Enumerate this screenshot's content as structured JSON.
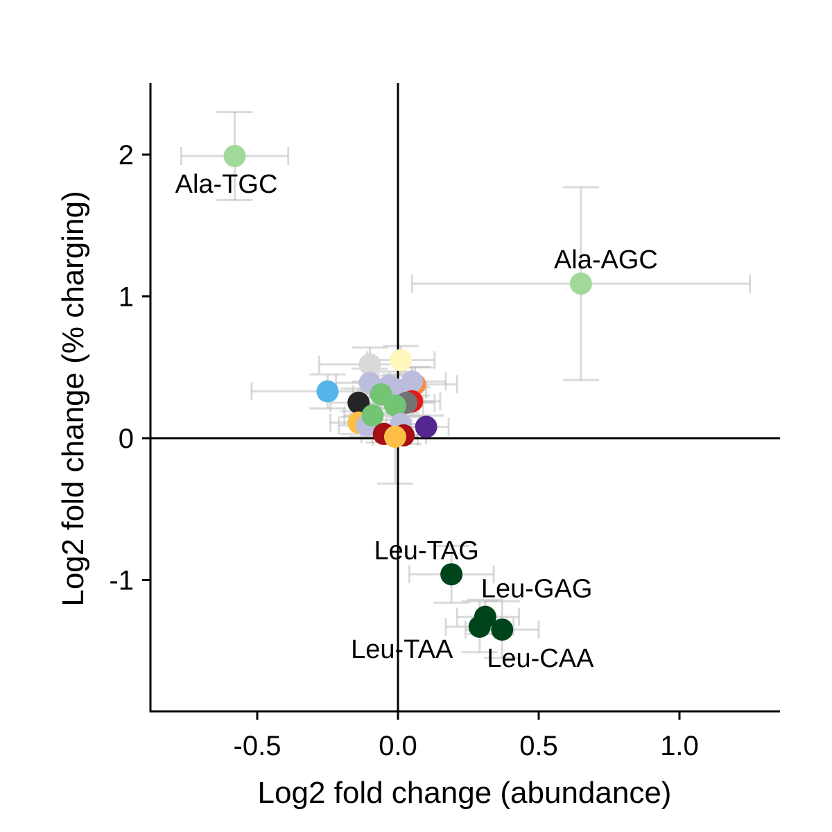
{
  "chart_data": {
    "type": "scatter",
    "xlabel": "Log2 fold change (abundance)",
    "ylabel": "Log2 fold change (% charging)",
    "xlim": [
      -0.88,
      1.35
    ],
    "ylim": [
      -1.93,
      2.5
    ],
    "xticks": [
      -0.5,
      0.0,
      0.5,
      1.0
    ],
    "xtick_labels": [
      "-0.5",
      "0.0",
      "0.5",
      "1.0"
    ],
    "yticks": [
      -1,
      0,
      1,
      2
    ],
    "ytick_labels": [
      "-1",
      "0",
      "1",
      "2"
    ],
    "reference_lines": {
      "x": 0,
      "y": 0
    },
    "grid": false,
    "legend": "none",
    "error_bar_color": "#bbbbbb",
    "points": [
      {
        "x": -0.58,
        "y": 1.99,
        "xerr": [
          0.19,
          0.19
        ],
        "yerr": [
          0.31,
          0.31
        ],
        "color": "#a1d99b",
        "label": "Ala-TGC"
      },
      {
        "x": 0.65,
        "y": 1.09,
        "xerr": [
          0.6,
          0.6
        ],
        "yerr": [
          0.68,
          0.68
        ],
        "color": "#a1d99b",
        "label": "Ala-AGC"
      },
      {
        "x": 0.19,
        "y": -0.96,
        "xerr": [
          0.15,
          0.15
        ],
        "yerr": [
          0.2,
          0.2
        ],
        "color": "#00441b",
        "label": "Leu-TAG"
      },
      {
        "x": 0.31,
        "y": -1.26,
        "xerr": [
          0.1,
          0.12
        ],
        "yerr": [
          0.12,
          0.12
        ],
        "color": "#00441b",
        "label": "Leu-GAG"
      },
      {
        "x": 0.29,
        "y": -1.33,
        "xerr": [
          0.12,
          0.12
        ],
        "yerr": [
          0.18,
          0.18
        ],
        "color": "#00441b",
        "label": "Leu-TAA"
      },
      {
        "x": 0.37,
        "y": -1.35,
        "xerr": [
          0.13,
          0.13
        ],
        "yerr": [
          0.2,
          0.2
        ],
        "color": "#00441b",
        "label": "Leu-CAA"
      },
      {
        "x": -0.25,
        "y": 0.33,
        "xerr": [
          0.27,
          0.22
        ],
        "yerr": [
          0.12,
          0.12
        ],
        "color": "#56b4e9",
        "label": ""
      },
      {
        "x": -0.1,
        "y": 0.52,
        "xerr": [
          0.18,
          0.12
        ],
        "yerr": [
          0.12,
          0.12
        ],
        "color": "#d9d9d9",
        "label": ""
      },
      {
        "x": 0.01,
        "y": 0.55,
        "xerr": [
          0.12,
          0.12
        ],
        "yerr": [
          0.1,
          0.1
        ],
        "color": "#fff7bc",
        "label": ""
      },
      {
        "x": 0.06,
        "y": 0.38,
        "xerr": [
          0.15,
          0.15
        ],
        "yerr": [
          0.12,
          0.12
        ],
        "color": "#fd8d3c",
        "label": ""
      },
      {
        "x": 0.05,
        "y": 0.4,
        "xerr": [
          0.12,
          0.12
        ],
        "yerr": [
          0.1,
          0.1
        ],
        "color": "#bcbddc",
        "label": ""
      },
      {
        "x": -0.1,
        "y": 0.39,
        "xerr": [
          0.12,
          0.12
        ],
        "yerr": [
          0.1,
          0.1
        ],
        "color": "#bcbddc",
        "label": ""
      },
      {
        "x": -0.03,
        "y": 0.37,
        "xerr": [
          0.1,
          0.1
        ],
        "yerr": [
          0.1,
          0.1
        ],
        "color": "#bcbddc",
        "label": ""
      },
      {
        "x": 0.0,
        "y": 0.34,
        "xerr": [
          0.1,
          0.1
        ],
        "yerr": [
          0.1,
          0.1
        ],
        "color": "#bcbddc",
        "label": ""
      },
      {
        "x": 0.05,
        "y": 0.26,
        "xerr": [
          0.1,
          0.1
        ],
        "yerr": [
          0.1,
          0.1
        ],
        "color": "#e31a1c",
        "label": ""
      },
      {
        "x": 0.03,
        "y": 0.25,
        "xerr": [
          0.1,
          0.1
        ],
        "yerr": [
          0.1,
          0.1
        ],
        "color": "#737373",
        "label": ""
      },
      {
        "x": -0.14,
        "y": 0.25,
        "xerr": [
          0.1,
          0.1
        ],
        "yerr": [
          0.1,
          0.1
        ],
        "color": "#252525",
        "label": ""
      },
      {
        "x": -0.06,
        "y": 0.31,
        "xerr": [
          0.1,
          0.1
        ],
        "yerr": [
          0.1,
          0.1
        ],
        "color": "#74c476",
        "label": ""
      },
      {
        "x": -0.01,
        "y": 0.23,
        "xerr": [
          0.1,
          0.1
        ],
        "yerr": [
          0.1,
          0.1
        ],
        "color": "#74c476",
        "label": ""
      },
      {
        "x": -0.14,
        "y": 0.11,
        "xerr": [
          0.1,
          0.1
        ],
        "yerr": [
          0.08,
          0.08
        ],
        "color": "#fdbf47",
        "label": ""
      },
      {
        "x": -0.11,
        "y": 0.09,
        "xerr": [
          0.1,
          0.1
        ],
        "yerr": [
          0.08,
          0.08
        ],
        "color": "#bcbddc",
        "label": ""
      },
      {
        "x": -0.09,
        "y": 0.16,
        "xerr": [
          0.1,
          0.1
        ],
        "yerr": [
          0.08,
          0.08
        ],
        "color": "#74c476",
        "label": ""
      },
      {
        "x": 0.01,
        "y": 0.1,
        "xerr": [
          0.1,
          0.1
        ],
        "yerr": [
          0.08,
          0.08
        ],
        "color": "#bcbddc",
        "label": ""
      },
      {
        "x": -0.05,
        "y": 0.03,
        "xerr": [
          0.08,
          0.08
        ],
        "yerr": [
          0.06,
          0.06
        ],
        "color": "#a50f15",
        "label": ""
      },
      {
        "x": 0.02,
        "y": 0.02,
        "xerr": [
          0.08,
          0.08
        ],
        "yerr": [
          0.06,
          0.06
        ],
        "color": "#a50f15",
        "label": ""
      },
      {
        "x": 0.1,
        "y": 0.08,
        "xerr": [
          0.08,
          0.08
        ],
        "yerr": [
          0.08,
          0.08
        ],
        "color": "#54278f",
        "label": ""
      },
      {
        "x": -0.01,
        "y": 0.01,
        "xerr": [
          0.08,
          0.08
        ],
        "yerr": [
          0.33,
          0.33
        ],
        "color": "#fdbf47",
        "label": ""
      }
    ]
  }
}
